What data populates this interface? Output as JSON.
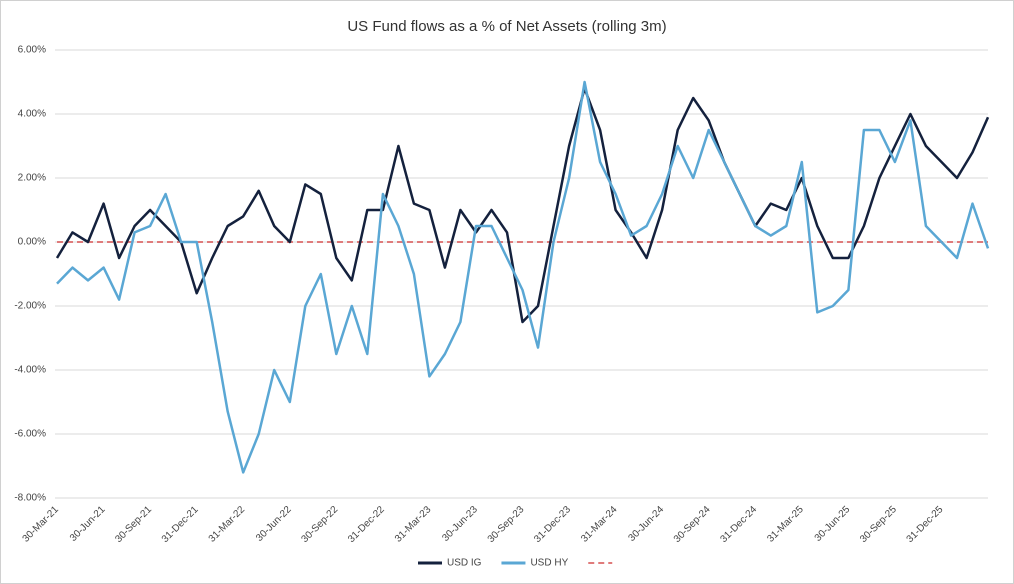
{
  "chart_data": {
    "type": "line",
    "title": "US Fund flows as a % of Net Assets (rolling 3m)",
    "categories": [
      "30-Mar-21",
      null,
      null,
      "30-Jun-21",
      null,
      null,
      "30-Sep-21",
      null,
      null,
      "31-Dec-21",
      null,
      null,
      "31-Mar-22",
      null,
      null,
      "30-Jun-22",
      null,
      null,
      "30-Sep-22",
      null,
      null,
      "31-Dec-22",
      null,
      null,
      "31-Mar-23",
      null,
      null,
      "30-Jun-23",
      null,
      null,
      "30-Sep-23",
      null,
      null,
      "31-Dec-23",
      null,
      null,
      "31-Mar-24",
      null,
      null,
      "30-Jun-24",
      null,
      null,
      "30-Sep-24",
      null,
      null,
      "31-Dec-24",
      null,
      null,
      "31-Mar-25",
      null,
      null,
      "30-Jun-25",
      null,
      null,
      "30-Sep-25",
      null,
      null,
      "31-Dec-25",
      null,
      null,
      null
    ],
    "series": [
      {
        "name": "USD IG",
        "color": "#14213d",
        "values": [
          -0.5,
          0.3,
          0.0,
          1.2,
          -0.5,
          0.5,
          1.0,
          0.5,
          0.0,
          -1.6,
          -0.5,
          0.5,
          0.8,
          1.6,
          0.5,
          0.0,
          1.8,
          1.5,
          -0.5,
          -1.2,
          1.0,
          1.0,
          3.0,
          1.2,
          1.0,
          -0.8,
          1.0,
          0.3,
          1.0,
          0.3,
          -2.5,
          -2.0,
          0.5,
          3.0,
          4.8,
          3.5,
          1.0,
          0.3,
          -0.5,
          1.0,
          3.5,
          4.5,
          3.8,
          2.5,
          1.5,
          0.5,
          1.2,
          1.0,
          2.0,
          0.5,
          -0.5,
          -0.5,
          0.5,
          2.0,
          3.0,
          4.0,
          3.0,
          2.5,
          2.0,
          2.8,
          3.9
        ]
      },
      {
        "name": "USD HY",
        "color": "#5aa7d4",
        "values": [
          -1.3,
          -0.8,
          -1.2,
          -0.8,
          -1.8,
          0.3,
          0.5,
          1.5,
          0.0,
          0.0,
          -2.5,
          -5.3,
          -7.2,
          -6.0,
          -4.0,
          -5.0,
          -2.0,
          -1.0,
          -3.5,
          -2.0,
          -3.5,
          1.5,
          0.5,
          -1.0,
          -4.2,
          -3.5,
          -2.5,
          0.5,
          0.5,
          -0.5,
          -1.5,
          -3.3,
          0.0,
          2.0,
          5.0,
          2.5,
          1.5,
          0.2,
          0.5,
          1.5,
          3.0,
          2.0,
          3.5,
          2.5,
          1.5,
          0.5,
          0.2,
          0.5,
          2.5,
          -2.2,
          -2.0,
          -1.5,
          3.5,
          3.5,
          2.5,
          3.8,
          0.5,
          0.0,
          -0.5,
          1.2,
          -0.2
        ]
      }
    ],
    "reference_line": {
      "value": 0,
      "color": "#e07b7b",
      "dashed": true
    },
    "ylim": [
      -8,
      6
    ],
    "yticks": [
      {
        "value": -8,
        "label": "-8.00%"
      },
      {
        "value": -6,
        "label": "-6.00%"
      },
      {
        "value": -4,
        "label": "-4.00%"
      },
      {
        "value": -2,
        "label": "-2.00%"
      },
      {
        "value": 0,
        "label": "0.00%"
      },
      {
        "value": 2,
        "label": "2.00%"
      },
      {
        "value": 4,
        "label": "4.00%"
      },
      {
        "value": 6,
        "label": "6.00%"
      }
    ],
    "grid": true,
    "legend": "bottom"
  }
}
